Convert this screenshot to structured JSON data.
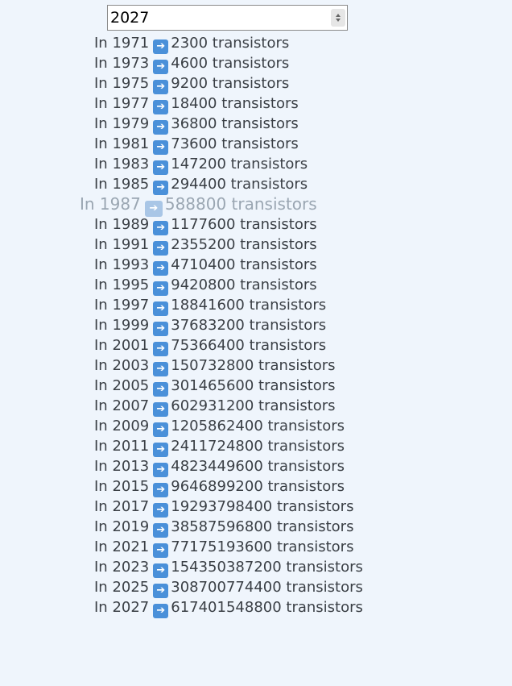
{
  "year_input": {
    "value": "2027"
  },
  "arrow_icon": "right-arrow-icon",
  "rows": [
    {
      "year": "In 1971",
      "count": "2300 transistors"
    },
    {
      "year": "In 1973",
      "count": "4600 transistors"
    },
    {
      "year": "In 1975",
      "count": "9200 transistors"
    },
    {
      "year": "In 1977",
      "count": "18400 transistors"
    },
    {
      "year": "In 1979",
      "count": "36800 transistors"
    },
    {
      "year": "In 1981",
      "count": "73600 transistors"
    },
    {
      "year": "In 1983",
      "count": "147200 transistors"
    },
    {
      "year": "In 1985",
      "count": "294400 transistors"
    },
    {
      "year": "In 1987",
      "count": "588800 transistors",
      "highlight": true
    },
    {
      "year": "In 1989",
      "count": "1177600 transistors"
    },
    {
      "year": "In 1991",
      "count": "2355200 transistors"
    },
    {
      "year": "In 1993",
      "count": "4710400 transistors"
    },
    {
      "year": "In 1995",
      "count": "9420800 transistors"
    },
    {
      "year": "In 1997",
      "count": "18841600 transistors"
    },
    {
      "year": "In 1999",
      "count": "37683200 transistors"
    },
    {
      "year": "In 2001",
      "count": "75366400 transistors"
    },
    {
      "year": "In 2003",
      "count": "150732800 transistors"
    },
    {
      "year": "In 2005",
      "count": "301465600 transistors"
    },
    {
      "year": "In 2007",
      "count": "602931200 transistors"
    },
    {
      "year": "In 2009",
      "count": "1205862400 transistors"
    },
    {
      "year": "In 2011",
      "count": "2411724800 transistors"
    },
    {
      "year": "In 2013",
      "count": "4823449600 transistors"
    },
    {
      "year": "In 2015",
      "count": "9646899200 transistors"
    },
    {
      "year": "In 2017",
      "count": "19293798400 transistors"
    },
    {
      "year": "In 2019",
      "count": "38587596800 transistors"
    },
    {
      "year": "In 2021",
      "count": "77175193600 transistors"
    },
    {
      "year": "In 2023",
      "count": "154350387200 transistors"
    },
    {
      "year": "In 2025",
      "count": "308700774400 transistors"
    },
    {
      "year": "In 2027",
      "count": "617401548800 transistors"
    }
  ]
}
